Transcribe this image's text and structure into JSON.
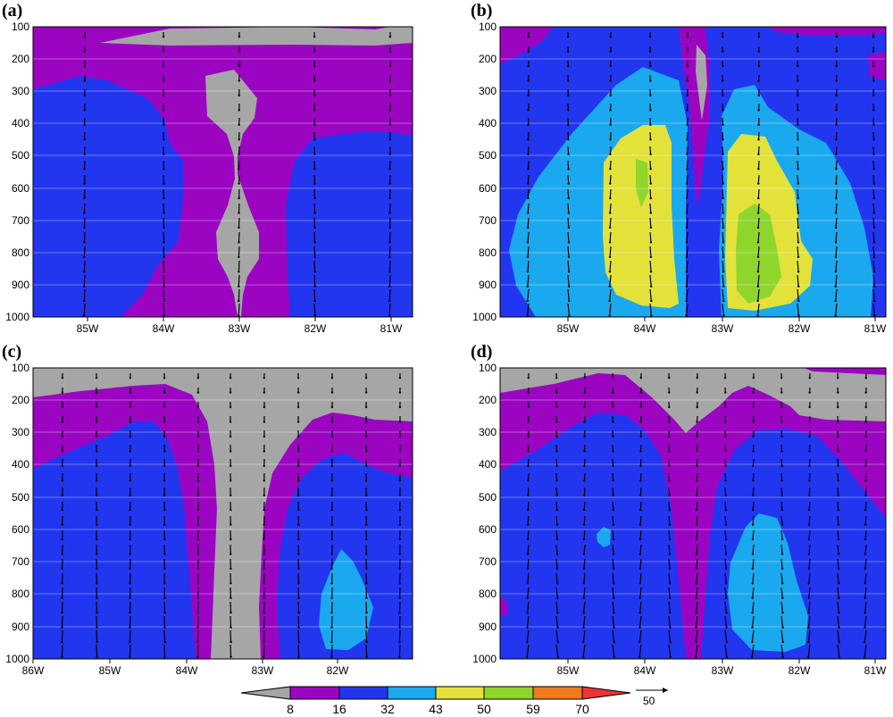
{
  "chart_data": [
    {
      "type": "contour",
      "panel_label": "(a)",
      "yticks": [
        "100",
        "200",
        "300",
        "400",
        "500",
        "600",
        "700",
        "800",
        "900",
        "1000"
      ],
      "xticks": [
        "85W",
        "84W",
        "83W",
        "82W",
        "81W"
      ]
    },
    {
      "type": "contour",
      "panel_label": "(b)",
      "yticks": [
        "100",
        "200",
        "300",
        "400",
        "500",
        "600",
        "700",
        "800",
        "900",
        "1000"
      ],
      "xticks": [
        "85W",
        "84W",
        "83W",
        "82W",
        "81W"
      ]
    },
    {
      "type": "contour",
      "panel_label": "(c)",
      "yticks": [
        "100",
        "200",
        "300",
        "400",
        "500",
        "600",
        "700",
        "800",
        "900",
        "1000"
      ],
      "xticks": [
        "86W",
        "85W",
        "84W",
        "83W",
        "82W"
      ]
    },
    {
      "type": "contour",
      "panel_label": "(d)",
      "yticks": [
        "100",
        "200",
        "300",
        "400",
        "500",
        "600",
        "700",
        "800",
        "900",
        "1000"
      ],
      "xticks": [
        "85W",
        "84W",
        "83W",
        "82W",
        "81W"
      ]
    }
  ],
  "colorbar": {
    "labels": [
      "8",
      "16",
      "32",
      "43",
      "50",
      "59",
      "70"
    ],
    "colors": [
      "#a6a6a6",
      "#9b05c2",
      "#2236f0",
      "#1aa9ee",
      "#e3e23a",
      "#8fd62c",
      "#ee7a1e",
      "#ee3333"
    ]
  },
  "vector_key": {
    "label": "50"
  },
  "colors": {
    "gray": "#a6a6a6",
    "purple": "#9b05c2",
    "blue": "#2236f0",
    "cyan": "#1aa9ee",
    "yellow": "#e3e23a",
    "green": "#8fd62c"
  }
}
